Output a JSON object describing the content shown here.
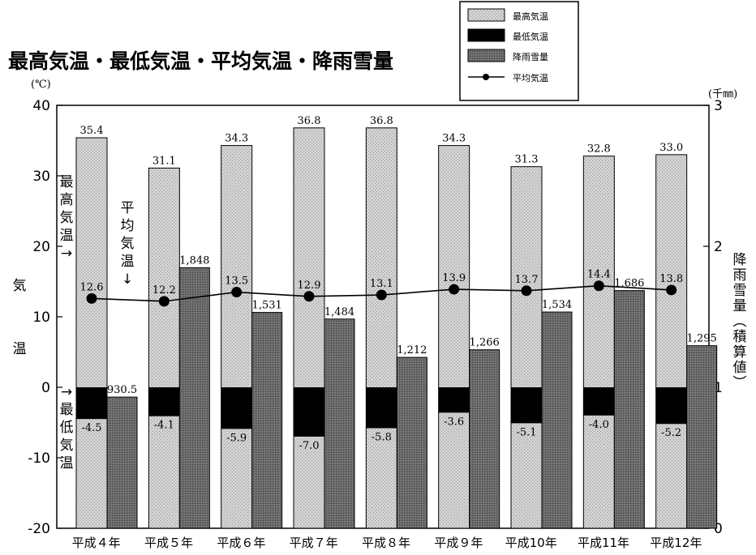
{
  "figure_label": "",
  "chart_data": {
    "type": "bar",
    "title": "最高気温・最低気温・平均気温・降雨雪量",
    "categories": [
      "平成４年",
      "平成５年",
      "平成６年",
      "平成７年",
      "平成８年",
      "平成９年",
      "平成10年",
      "平成11年",
      "平成12年"
    ],
    "y_left": {
      "label": "気温",
      "unit": "(℃)",
      "ylim": [
        -20,
        40
      ],
      "ticks": [
        "40",
        "30",
        "20",
        "10",
        "0",
        "-10",
        "-20"
      ]
    },
    "y_right": {
      "label": "降雨雪量（積算値）",
      "unit": "(千㎜)",
      "ylim": [
        0,
        3
      ],
      "ticks": [
        "3",
        "2",
        "1",
        "0"
      ]
    },
    "legend": {
      "position": "top-right",
      "items": [
        "最高気温",
        "最低気温",
        "降雨雪量",
        "平均気温"
      ]
    },
    "series": [
      {
        "name": "最高気温",
        "axis": "left",
        "values": [
          35.4,
          31.1,
          34.3,
          36.8,
          36.8,
          34.3,
          31.3,
          32.8,
          33.0
        ],
        "labels": [
          "35.4",
          "31.1",
          "34.3",
          "36.8",
          "36.8",
          "34.3",
          "31.3",
          "32.8",
          "33.0"
        ]
      },
      {
        "name": "最低気温",
        "axis": "left",
        "values": [
          -4.5,
          -4.1,
          -5.9,
          -7.0,
          -5.8,
          -3.6,
          -5.1,
          -4.0,
          -5.2
        ],
        "labels": [
          "-4.5",
          "-4.1",
          "-5.9",
          "-7.0",
          "-5.8",
          "-3.6",
          "-5.1",
          "-4.0",
          "-5.2"
        ]
      },
      {
        "name": "降雨雪量",
        "axis": "right",
        "values": [
          930.5,
          1848,
          1531,
          1484,
          1212,
          1266,
          1534,
          1686,
          1295
        ],
        "labels": [
          "930.5",
          "1,848",
          "1,531",
          "1,484",
          "1,212",
          "1,266",
          "1,534",
          "1,686",
          "1,295"
        ]
      },
      {
        "name": "平均気温",
        "axis": "left",
        "type": "line",
        "values": [
          12.6,
          12.2,
          13.5,
          12.9,
          13.1,
          13.9,
          13.7,
          14.4,
          13.8
        ],
        "labels": [
          "12.6",
          "12.2",
          "13.5",
          "12.9",
          "13.1",
          "13.9",
          "13.7",
          "14.4",
          "13.8"
        ]
      }
    ],
    "annotations": [
      {
        "text": "最高気温→",
        "target": "最高気温"
      },
      {
        "text": "平均気温↓",
        "target": "平均気温"
      },
      {
        "text": "→最低気温",
        "target": "最低気温"
      }
    ],
    "grid": false,
    "colors": {
      "max_temp": "#cfcfcf",
      "min_temp": "#000000",
      "precip": "#6a6a6a",
      "avg_line": "#000000"
    }
  }
}
